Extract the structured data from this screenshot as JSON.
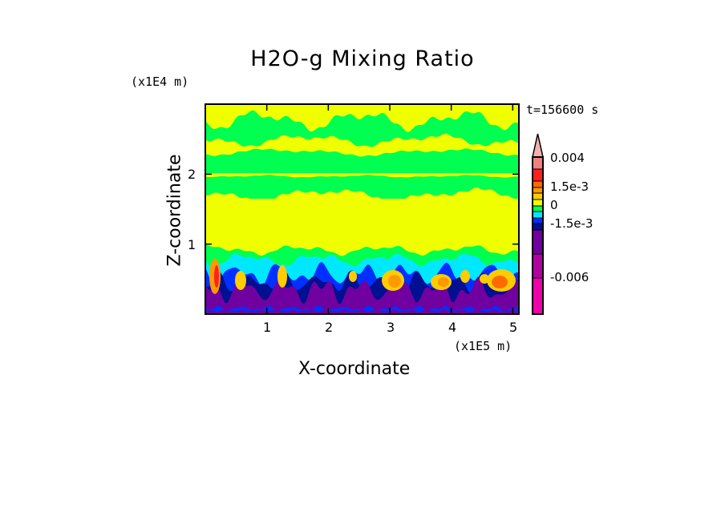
{
  "chart_data": {
    "type": "heatmap",
    "title": "H2O-g Mixing Ratio",
    "xlabel": "X-coordinate",
    "ylabel": "Z-coordinate",
    "x_unit": "(x1E5 m)",
    "y_unit": "(x1E4 m)",
    "time_label": "t=156600 s",
    "xlim": [
      0,
      5.1
    ],
    "ylim": [
      0,
      3.0
    ],
    "xticks": [
      "1",
      "2",
      "3",
      "4",
      "5"
    ],
    "xtick_values": [
      1,
      2,
      3,
      4,
      5
    ],
    "yticks": [
      "1",
      "2"
    ],
    "ytick_values": [
      1,
      2
    ],
    "colorbar": {
      "labels": [
        "0.004",
        "1.5e-3",
        "0",
        "-1.5e-3",
        "-0.006"
      ],
      "label_values": [
        0.004,
        0.0015,
        0,
        -0.0015,
        -0.006
      ],
      "levels_top_to_bottom": [
        {
          "color": "#f4b0b0",
          "kind": "extend-arrow"
        },
        {
          "color": "#f08080"
        },
        {
          "color": "#ff2020"
        },
        {
          "color": "#ff6a00"
        },
        {
          "color": "#ff9900"
        },
        {
          "color": "#ffcc00"
        },
        {
          "color": "#f0ff00"
        },
        {
          "color": "#00ff50"
        },
        {
          "color": "#00e8ff"
        },
        {
          "color": "#0030ff"
        },
        {
          "color": "#001090"
        },
        {
          "color": "#7000a0"
        },
        {
          "color": "#b000a0"
        },
        {
          "color": "#ee00aa"
        }
      ]
    }
  }
}
